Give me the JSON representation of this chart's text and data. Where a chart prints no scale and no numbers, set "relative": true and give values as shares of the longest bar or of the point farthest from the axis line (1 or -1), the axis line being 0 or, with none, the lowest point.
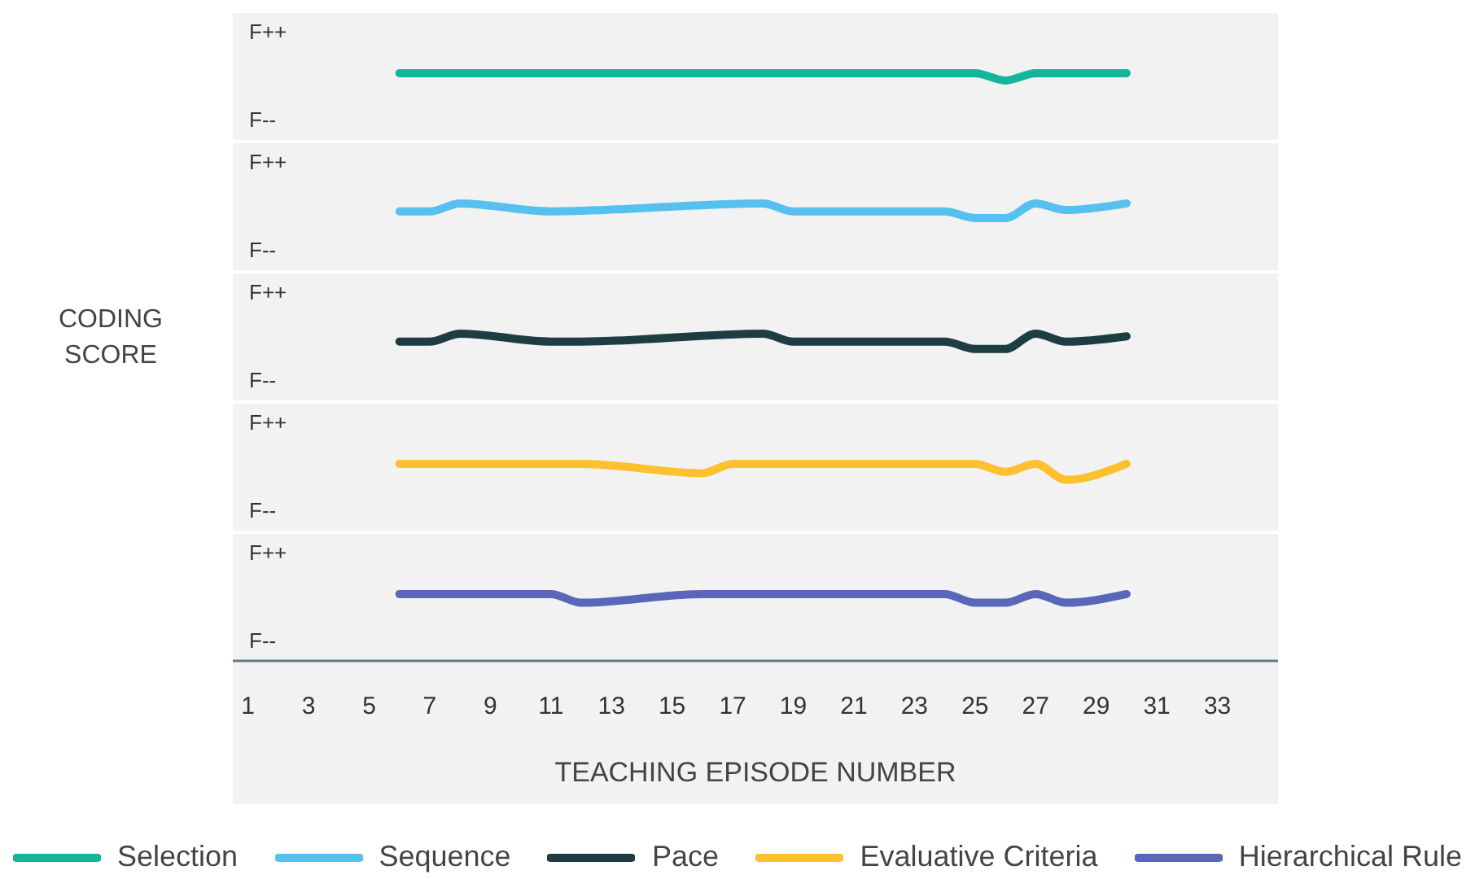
{
  "chart_data": [
    {
      "type": "line",
      "relative": true,
      "tick_labels": false,
      "legend": "bottom",
      "xlim": [
        0.5,
        35
      ],
      "annotations": [
        "F++",
        "F--"
      ],
      "series": [
        {
          "name": "Selection",
          "color": "#13b59b",
          "x": [
            6,
            25,
            26,
            27,
            30
          ],
          "values": [
            1,
            1,
            0.89,
            1,
            1
          ]
        }
      ]
    },
    {
      "type": "line",
      "relative": true,
      "tick_labels": false,
      "legend": "bottom",
      "xlim": [
        0.5,
        35
      ],
      "annotations": [
        "F++",
        "F--"
      ],
      "series": [
        {
          "name": "Sequence",
          "color": "#56c1ee",
          "x": [
            6,
            7,
            8,
            11,
            18,
            19,
            24,
            25,
            26,
            27,
            28,
            30
          ],
          "values": [
            0.88,
            0.88,
            1,
            0.88,
            1,
            0.88,
            0.88,
            0.78,
            0.78,
            1,
            0.9,
            1
          ]
        }
      ]
    },
    {
      "type": "line",
      "relative": true,
      "tick_labels": false,
      "legend": "bottom",
      "ylabel": "CODING SCORE",
      "xlim": [
        0.5,
        35
      ],
      "annotations": [
        "F++",
        "F--"
      ],
      "series": [
        {
          "name": "Pace",
          "color": "#1e3d42",
          "x": [
            6,
            7,
            8,
            11,
            12,
            18,
            19,
            24,
            25,
            26,
            27,
            28,
            30
          ],
          "values": [
            0.88,
            0.88,
            1,
            0.88,
            0.88,
            1,
            0.88,
            0.88,
            0.77,
            0.77,
            1,
            0.88,
            0.96
          ]
        }
      ]
    },
    {
      "type": "line",
      "relative": true,
      "tick_labels": false,
      "legend": "bottom",
      "xlim": [
        0.5,
        35
      ],
      "annotations": [
        "F++",
        "F--"
      ],
      "series": [
        {
          "name": "Evaluative Criteria",
          "color": "#fdc02f",
          "x": [
            6,
            12,
            16,
            17,
            25,
            26,
            27,
            28,
            30
          ],
          "values": [
            1,
            1,
            0.86,
            1,
            1,
            0.88,
            1,
            0.76,
            1
          ]
        }
      ]
    },
    {
      "type": "line",
      "relative": true,
      "tick_labels": "x",
      "legend": "bottom",
      "xlabel": "TEACHING EPISODE NUMBER",
      "xlim": [
        0.5,
        35
      ],
      "xticks": [
        1,
        3,
        5,
        7,
        9,
        11,
        13,
        15,
        17,
        19,
        21,
        23,
        25,
        27,
        29,
        31,
        33
      ],
      "annotations": [
        "F++",
        "F--"
      ],
      "series": [
        {
          "name": "Hierarchical Rule",
          "color": "#5a67b8",
          "x": [
            6,
            11,
            12,
            16,
            24,
            25,
            26,
            27,
            28,
            30
          ],
          "values": [
            1,
            1,
            0.87,
            1,
            1,
            0.87,
            0.87,
            1,
            0.87,
            1
          ]
        }
      ]
    }
  ]
}
